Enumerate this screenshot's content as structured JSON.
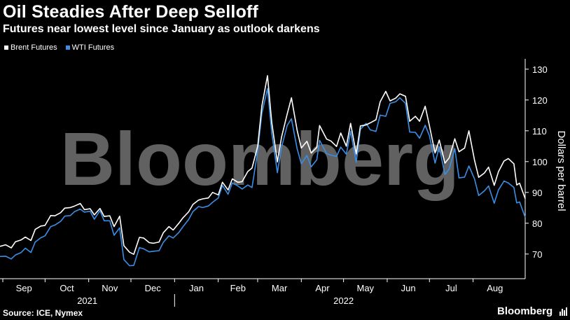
{
  "header": {
    "title": "Oil Steadies After Deep Selloff",
    "subtitle": "Futures near lowest level since January as outlook darkens"
  },
  "footer": {
    "source": "Source: ICE, Nymex",
    "brand": "Bloomberg",
    "watermark": "Bloomberg"
  },
  "colors": {
    "brent": "#ffffff",
    "wti": "#3a8ee6",
    "background": "#000000",
    "axis": "#ffffff"
  },
  "chart_data": {
    "type": "line",
    "title": "Oil Steadies After Deep Selloff",
    "subtitle": "Futures near lowest level since January as outlook darkens",
    "ylabel": "Dollars per barrel",
    "ylim": [
      62,
      132
    ],
    "yticks": [
      70,
      80,
      90,
      100,
      110,
      120,
      130
    ],
    "xlim": [
      "2021-08-30",
      "2022-09-07"
    ],
    "legend_position": "top-left",
    "month_ticks": [
      {
        "label": "Sep",
        "date": "2021-09-01"
      },
      {
        "label": "Oct",
        "date": "2021-10-01"
      },
      {
        "label": "Nov",
        "date": "2021-11-01"
      },
      {
        "label": "Dec",
        "date": "2021-12-01"
      },
      {
        "label": "Jan",
        "date": "2022-01-01"
      },
      {
        "label": "Feb",
        "date": "2022-02-01"
      },
      {
        "label": "Mar",
        "date": "2022-03-01"
      },
      {
        "label": "Apr",
        "date": "2022-04-01"
      },
      {
        "label": "May",
        "date": "2022-05-01"
      },
      {
        "label": "Jun",
        "date": "2022-06-01"
      },
      {
        "label": "Jul",
        "date": "2022-07-01"
      },
      {
        "label": "Aug",
        "date": "2022-08-01"
      }
    ],
    "year_labels": [
      {
        "label": "2021",
        "center": "2021-10-31"
      },
      {
        "label": "2022",
        "center": "2022-05-01"
      }
    ],
    "series": [
      {
        "name": "Brent Futures",
        "color": "#ffffff",
        "points": [
          [
            "2021-08-30",
            72.5
          ],
          [
            "2021-09-03",
            73.0
          ],
          [
            "2021-09-07",
            72.0
          ],
          [
            "2021-09-10",
            74.0
          ],
          [
            "2021-09-14",
            74.6
          ],
          [
            "2021-09-17",
            75.5
          ],
          [
            "2021-09-21",
            74.4
          ],
          [
            "2021-09-24",
            78.0
          ],
          [
            "2021-09-28",
            79.1
          ],
          [
            "2021-10-01",
            79.3
          ],
          [
            "2021-10-05",
            82.5
          ],
          [
            "2021-10-08",
            82.4
          ],
          [
            "2021-10-12",
            83.4
          ],
          [
            "2021-10-15",
            84.9
          ],
          [
            "2021-10-19",
            85.1
          ],
          [
            "2021-10-22",
            85.6
          ],
          [
            "2021-10-26",
            86.4
          ],
          [
            "2021-10-29",
            84.4
          ],
          [
            "2021-11-02",
            84.7
          ],
          [
            "2021-11-05",
            82.7
          ],
          [
            "2021-11-09",
            84.8
          ],
          [
            "2021-11-12",
            82.2
          ],
          [
            "2021-11-16",
            82.4
          ],
          [
            "2021-11-19",
            78.9
          ],
          [
            "2021-11-23",
            82.3
          ],
          [
            "2021-11-26",
            72.7
          ],
          [
            "2021-11-30",
            70.6
          ],
          [
            "2021-12-03",
            69.9
          ],
          [
            "2021-12-07",
            75.4
          ],
          [
            "2021-12-10",
            75.2
          ],
          [
            "2021-12-14",
            73.7
          ],
          [
            "2021-12-17",
            73.5
          ],
          [
            "2021-12-21",
            73.9
          ],
          [
            "2021-12-24",
            76.9
          ],
          [
            "2021-12-28",
            78.9
          ],
          [
            "2021-12-31",
            77.8
          ],
          [
            "2022-01-04",
            80.0
          ],
          [
            "2022-01-07",
            81.8
          ],
          [
            "2022-01-11",
            83.7
          ],
          [
            "2022-01-14",
            86.1
          ],
          [
            "2022-01-18",
            87.5
          ],
          [
            "2022-01-21",
            87.9
          ],
          [
            "2022-01-25",
            88.2
          ],
          [
            "2022-01-28",
            90.0
          ],
          [
            "2022-02-01",
            89.2
          ],
          [
            "2022-02-04",
            93.3
          ],
          [
            "2022-02-08",
            90.8
          ],
          [
            "2022-02-11",
            94.4
          ],
          [
            "2022-02-15",
            93.3
          ],
          [
            "2022-02-18",
            93.5
          ],
          [
            "2022-02-22",
            96.8
          ],
          [
            "2022-02-25",
            97.9
          ],
          [
            "2022-03-01",
            105.0
          ],
          [
            "2022-03-04",
            118.1
          ],
          [
            "2022-03-08",
            127.9
          ],
          [
            "2022-03-11",
            112.7
          ],
          [
            "2022-03-15",
            99.9
          ],
          [
            "2022-03-18",
            108.0
          ],
          [
            "2022-03-22",
            115.5
          ],
          [
            "2022-03-25",
            120.7
          ],
          [
            "2022-03-29",
            110.2
          ],
          [
            "2022-04-01",
            104.4
          ],
          [
            "2022-04-05",
            106.6
          ],
          [
            "2022-04-08",
            102.8
          ],
          [
            "2022-04-12",
            104.6
          ],
          [
            "2022-04-14",
            111.7
          ],
          [
            "2022-04-19",
            107.3
          ],
          [
            "2022-04-22",
            106.7
          ],
          [
            "2022-04-26",
            104.9
          ],
          [
            "2022-04-29",
            109.3
          ],
          [
            "2022-05-03",
            105.0
          ],
          [
            "2022-05-06",
            112.4
          ],
          [
            "2022-05-10",
            102.5
          ],
          [
            "2022-05-13",
            111.6
          ],
          [
            "2022-05-17",
            111.9
          ],
          [
            "2022-05-20",
            112.6
          ],
          [
            "2022-05-24",
            113.6
          ],
          [
            "2022-05-27",
            119.4
          ],
          [
            "2022-05-31",
            122.8
          ],
          [
            "2022-06-03",
            119.7
          ],
          [
            "2022-06-07",
            120.6
          ],
          [
            "2022-06-10",
            122.0
          ],
          [
            "2022-06-14",
            121.2
          ],
          [
            "2022-06-17",
            113.1
          ],
          [
            "2022-06-21",
            114.7
          ],
          [
            "2022-06-24",
            113.1
          ],
          [
            "2022-06-28",
            117.98
          ],
          [
            "2022-07-01",
            111.6
          ],
          [
            "2022-07-05",
            102.8
          ],
          [
            "2022-07-08",
            107.0
          ],
          [
            "2022-07-12",
            99.5
          ],
          [
            "2022-07-15",
            101.2
          ],
          [
            "2022-07-19",
            107.4
          ],
          [
            "2022-07-22",
            103.2
          ],
          [
            "2022-07-26",
            104.4
          ],
          [
            "2022-07-29",
            110.0
          ],
          [
            "2022-08-02",
            100.5
          ],
          [
            "2022-08-05",
            94.9
          ],
          [
            "2022-08-09",
            96.3
          ],
          [
            "2022-08-12",
            98.2
          ],
          [
            "2022-08-16",
            92.3
          ],
          [
            "2022-08-19",
            96.7
          ],
          [
            "2022-08-23",
            100.2
          ],
          [
            "2022-08-26",
            100.99
          ],
          [
            "2022-08-30",
            99.3
          ],
          [
            "2022-09-01",
            92.4
          ],
          [
            "2022-09-03",
            93.0
          ],
          [
            "2022-09-07",
            88.0
          ]
        ]
      },
      {
        "name": "WTI Futures",
        "color": "#3a8ee6",
        "points": [
          [
            "2021-08-30",
            69.2
          ],
          [
            "2021-09-03",
            69.3
          ],
          [
            "2021-09-07",
            68.4
          ],
          [
            "2021-09-10",
            69.7
          ],
          [
            "2021-09-14",
            70.5
          ],
          [
            "2021-09-17",
            71.9
          ],
          [
            "2021-09-21",
            70.5
          ],
          [
            "2021-09-24",
            73.9
          ],
          [
            "2021-09-28",
            75.3
          ],
          [
            "2021-10-01",
            75.9
          ],
          [
            "2021-10-05",
            78.9
          ],
          [
            "2021-10-08",
            79.4
          ],
          [
            "2021-10-12",
            80.6
          ],
          [
            "2021-10-15",
            82.3
          ],
          [
            "2021-10-19",
            82.5
          ],
          [
            "2021-10-22",
            83.8
          ],
          [
            "2021-10-26",
            84.6
          ],
          [
            "2021-10-29",
            83.6
          ],
          [
            "2021-11-02",
            83.9
          ],
          [
            "2021-11-05",
            81.3
          ],
          [
            "2021-11-09",
            84.1
          ],
          [
            "2021-11-12",
            80.8
          ],
          [
            "2021-11-16",
            80.8
          ],
          [
            "2021-11-19",
            76.1
          ],
          [
            "2021-11-23",
            78.5
          ],
          [
            "2021-11-26",
            68.2
          ],
          [
            "2021-11-30",
            66.2
          ],
          [
            "2021-12-03",
            66.3
          ],
          [
            "2021-12-07",
            72.1
          ],
          [
            "2021-12-10",
            71.7
          ],
          [
            "2021-12-14",
            70.7
          ],
          [
            "2021-12-17",
            70.9
          ],
          [
            "2021-12-21",
            71.1
          ],
          [
            "2021-12-24",
            73.8
          ],
          [
            "2021-12-28",
            75.9
          ],
          [
            "2021-12-31",
            75.2
          ],
          [
            "2022-01-04",
            77.0
          ],
          [
            "2022-01-07",
            78.9
          ],
          [
            "2022-01-11",
            81.2
          ],
          [
            "2022-01-14",
            83.8
          ],
          [
            "2022-01-18",
            85.4
          ],
          [
            "2022-01-21",
            85.1
          ],
          [
            "2022-01-25",
            85.6
          ],
          [
            "2022-01-28",
            86.8
          ],
          [
            "2022-02-01",
            88.2
          ],
          [
            "2022-02-04",
            92.3
          ],
          [
            "2022-02-08",
            89.4
          ],
          [
            "2022-02-11",
            93.1
          ],
          [
            "2022-02-15",
            92.1
          ],
          [
            "2022-02-18",
            91.1
          ],
          [
            "2022-02-22",
            92.4
          ],
          [
            "2022-02-25",
            91.6
          ],
          [
            "2022-03-01",
            103.4
          ],
          [
            "2022-03-04",
            115.7
          ],
          [
            "2022-03-08",
            123.7
          ],
          [
            "2022-03-11",
            109.3
          ],
          [
            "2022-03-15",
            96.4
          ],
          [
            "2022-03-18",
            104.7
          ],
          [
            "2022-03-22",
            111.8
          ],
          [
            "2022-03-25",
            113.9
          ],
          [
            "2022-03-29",
            104.2
          ],
          [
            "2022-04-01",
            99.3
          ],
          [
            "2022-04-05",
            102.0
          ],
          [
            "2022-04-08",
            98.3
          ],
          [
            "2022-04-12",
            100.6
          ],
          [
            "2022-04-14",
            106.9
          ],
          [
            "2022-04-19",
            102.6
          ],
          [
            "2022-04-22",
            102.1
          ],
          [
            "2022-04-26",
            101.7
          ],
          [
            "2022-04-29",
            104.7
          ],
          [
            "2022-05-03",
            102.4
          ],
          [
            "2022-05-06",
            109.8
          ],
          [
            "2022-05-10",
            99.8
          ],
          [
            "2022-05-13",
            110.5
          ],
          [
            "2022-05-17",
            112.4
          ],
          [
            "2022-05-20",
            110.3
          ],
          [
            "2022-05-24",
            109.8
          ],
          [
            "2022-05-27",
            115.1
          ],
          [
            "2022-05-31",
            114.7
          ],
          [
            "2022-06-03",
            118.9
          ],
          [
            "2022-06-07",
            119.4
          ],
          [
            "2022-06-10",
            120.7
          ],
          [
            "2022-06-14",
            118.9
          ],
          [
            "2022-06-17",
            109.6
          ],
          [
            "2022-06-21",
            109.5
          ],
          [
            "2022-06-24",
            107.6
          ],
          [
            "2022-06-28",
            111.8
          ],
          [
            "2022-07-01",
            108.4
          ],
          [
            "2022-07-05",
            99.5
          ],
          [
            "2022-07-08",
            104.8
          ],
          [
            "2022-07-12",
            95.8
          ],
          [
            "2022-07-15",
            97.6
          ],
          [
            "2022-07-19",
            104.2
          ],
          [
            "2022-07-22",
            94.7
          ],
          [
            "2022-07-26",
            94.98
          ],
          [
            "2022-07-29",
            98.6
          ],
          [
            "2022-08-02",
            94.4
          ],
          [
            "2022-08-05",
            89.0
          ],
          [
            "2022-08-09",
            90.5
          ],
          [
            "2022-08-12",
            92.1
          ],
          [
            "2022-08-16",
            86.5
          ],
          [
            "2022-08-19",
            90.8
          ],
          [
            "2022-08-23",
            93.7
          ],
          [
            "2022-08-26",
            93.1
          ],
          [
            "2022-08-30",
            91.6
          ],
          [
            "2022-09-01",
            86.6
          ],
          [
            "2022-09-03",
            86.9
          ],
          [
            "2022-09-07",
            81.9
          ]
        ]
      }
    ]
  }
}
